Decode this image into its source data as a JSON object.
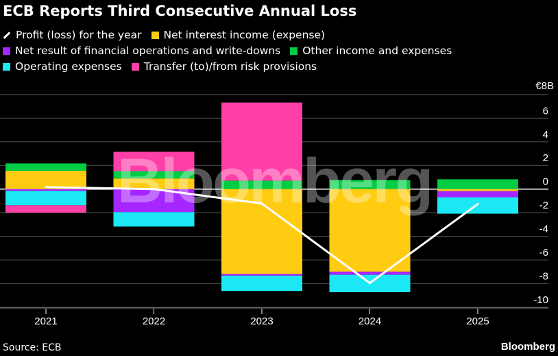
{
  "chart_data": {
    "type": "bar",
    "stacked": true,
    "title": "ECB Reports Third Consecutive Annual Loss",
    "unit_label": "€8B",
    "categories": [
      "2021",
      "2022",
      "2023",
      "2024",
      "2025"
    ],
    "ylim": [
      -11,
      8
    ],
    "yticks": [
      6,
      4,
      2,
      0,
      -2,
      -4,
      -6,
      -8,
      -10
    ],
    "grid": true,
    "legend_position": "top-left",
    "series": [
      {
        "name": "Net interest income (expense)",
        "color": "#ffcc11",
        "values": [
          1.55,
          0.9,
          -7.18,
          -6.98,
          -0.17
        ]
      },
      {
        "name": "Net result of financial operations and write-downs",
        "color": "#a626ff",
        "values": [
          -0.15,
          -1.95,
          -0.14,
          -0.27,
          -0.52
        ]
      },
      {
        "name": "Other income and expenses",
        "color": "#00cc44",
        "values": [
          0.62,
          0.62,
          0.72,
          0.77,
          0.83
        ]
      },
      {
        "name": "Operating expenses",
        "color": "#1ce8f5",
        "values": [
          -1.22,
          -1.22,
          -1.3,
          -1.47,
          -1.39
        ]
      },
      {
        "name": "Transfer (to)/from risk provisions",
        "color": "#ff3fa8",
        "values": [
          -0.62,
          1.64,
          6.6,
          0,
          0
        ]
      }
    ],
    "line": {
      "name": "Profit (loss) for the year",
      "color": "#ffffff",
      "values": [
        0.17,
        0,
        -1.22,
        -7.95,
        -1.26
      ]
    }
  },
  "legend_order": [
    [
      5,
      0
    ],
    [
      1,
      2
    ],
    [
      3,
      4
    ]
  ],
  "source": "Source: ECB",
  "brand": "Bloomberg",
  "watermark": "Bloomberg"
}
